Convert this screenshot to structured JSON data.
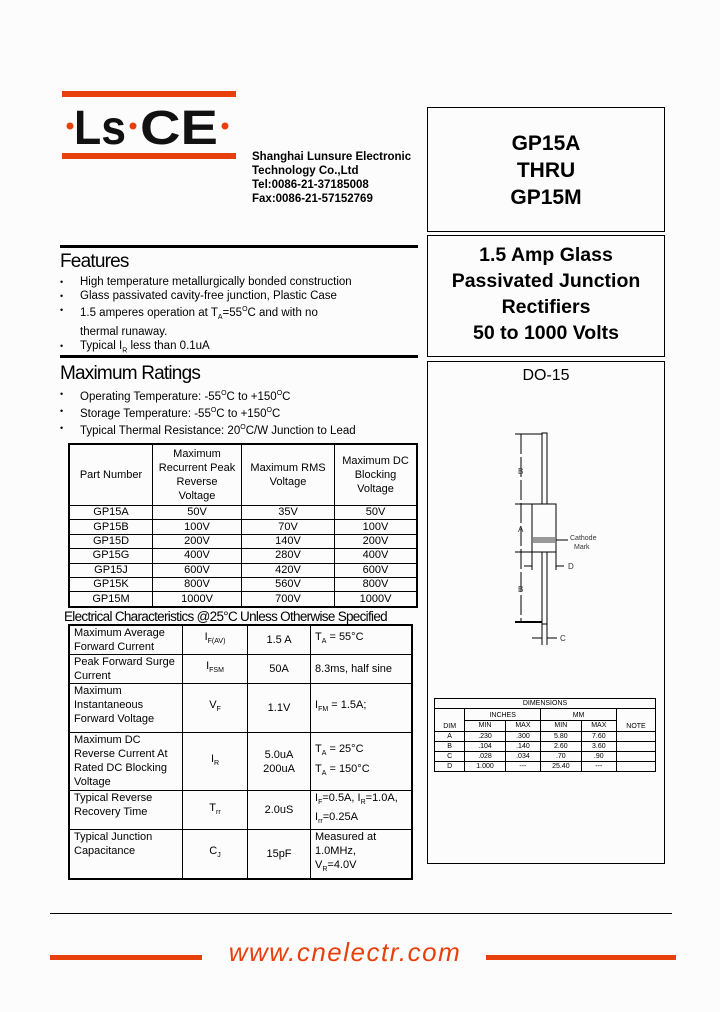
{
  "logo": {
    "text": "LsCE",
    "accent": "#e8400c"
  },
  "company": {
    "name": "Shanghai Lunsure Electronic",
    "name2": "Technology Co.,Ltd",
    "tel": "Tel:0086-21-37185008",
    "fax": "Fax:0086-21-57152769"
  },
  "title": {
    "line1": "GP15A",
    "line2": "THRU",
    "line3": "GP15M"
  },
  "description": {
    "line1": "1.5 Amp Glass",
    "line2": "Passivated Junction",
    "line3": "Rectifiers",
    "line4": "50 to 1000 Volts"
  },
  "features": {
    "heading": "Features",
    "items": [
      "High temperature metallurgically bonded construction",
      "Glass passivated cavity-free junction, Plastic Case",
      {
        "a": "1.5 amperes operation at T",
        "sub": "A",
        "b": "=55",
        "sup": "O",
        "c": "C and  with no",
        "d": "thermal runaway."
      },
      {
        "a": "Typical I",
        "sub": "R",
        "b": " less than 0.1uA"
      }
    ]
  },
  "ratings": {
    "heading": "Maximum Ratings",
    "items": [
      {
        "a": "Operating Temperature: -55",
        "sup1": "O",
        "b": "C to +150",
        "sup2": "O",
        "c": "C"
      },
      {
        "a": "Storage Temperature: -55",
        "sup1": "O",
        "b": "C to +150",
        "sup2": "O",
        "c": "C"
      },
      {
        "a": "Typical Thermal Resistance: 20",
        "sup1": "O",
        "b": "C/W Junction to Lead"
      }
    ]
  },
  "ratings_table": {
    "headers": [
      "Part Number",
      "Maximum Recurrent Peak Reverse Voltage",
      "Maximum RMS Voltage",
      "Maximum DC Blocking Voltage"
    ],
    "rows": [
      [
        "GP15A",
        "50V",
        "35V",
        "50V"
      ],
      [
        "GP15B",
        "100V",
        "70V",
        "100V"
      ],
      [
        "GP15D",
        "200V",
        "140V",
        "200V"
      ],
      [
        "GP15G",
        "400V",
        "280V",
        "400V"
      ],
      [
        "GP15J",
        "600V",
        "420V",
        "600V"
      ],
      [
        "GP15K",
        "800V",
        "560V",
        "800V"
      ],
      [
        "GP15M",
        "1000V",
        "700V",
        "1000V"
      ]
    ]
  },
  "electrical": {
    "heading": "Electrical Characteristics @25°C Unless Otherwise Specified",
    "rows": [
      {
        "param": "Maximum Average Forward Current",
        "sym": "I",
        "symsub": "F(AV)",
        "value": "1.5 A",
        "cond": [
          {
            "a": "T",
            "sub": "A",
            "b": " = 55°C"
          }
        ]
      },
      {
        "param": "Peak Forward Surge Current",
        "sym": "I",
        "symsub": "FSM",
        "value": "50A",
        "cond": [
          {
            "a": "8.3ms, half sine"
          }
        ]
      },
      {
        "param": "Maximum Instantaneous Forward Voltage",
        "sym": "V",
        "symsub": "F",
        "value": "1.1V",
        "cond": [
          {
            "a": "I",
            "sub": "FM",
            "b": " = 1.5A;"
          }
        ]
      },
      {
        "param": "Maximum DC Reverse Current At Rated DC Blocking Voltage",
        "sym": "I",
        "symsub": "R",
        "value": "5.0uA",
        "value2": "200uA",
        "cond": [
          {
            "a": "T",
            "sub": "A",
            "b": " = 25°C"
          },
          {
            "a": "T",
            "sub": "A",
            "b": " = 150°C"
          }
        ]
      },
      {
        "param": "Typical Reverse Recovery Time",
        "sym": "T",
        "symsub": "rr",
        "value": "2.0uS",
        "cond": [
          {
            "a": "I",
            "sub": "F",
            "b": "=0.5A, I",
            "sub2": "R",
            "c": "=1.0A,"
          },
          {
            "a": "I",
            "sub": "rr",
            "b": "=0.25A"
          }
        ]
      },
      {
        "param": "Typical Junction Capacitance",
        "sym": "C",
        "symsub": "J",
        "value": "15pF",
        "cond": [
          {
            "a": "Measured at"
          },
          {
            "a": "1.0MHz,"
          },
          {
            "a": "V",
            "sub": "R",
            "b": "=4.0V"
          }
        ]
      }
    ]
  },
  "package": {
    "name": "DO-15",
    "labels": {
      "a": "A",
      "b": "B",
      "c": "C",
      "d": "D",
      "cathode1": "Cathode",
      "cathode2": "Mark"
    }
  },
  "dimensions": {
    "title": "DIMENSIONS",
    "inches": "INCHES",
    "mm": "MM",
    "dim": "DIM",
    "min": "MIN",
    "max": "MAX",
    "note": "NOTE",
    "rows": [
      [
        "A",
        ".230",
        ".300",
        "5.80",
        "7.60",
        ""
      ],
      [
        "B",
        ".104",
        ".140",
        "2.60",
        "3.60",
        ""
      ],
      [
        "C",
        ".028",
        ".034",
        ".70",
        ".90",
        ""
      ],
      [
        "D",
        "1.000",
        "---",
        "25.40",
        "---",
        ""
      ]
    ]
  },
  "footer": {
    "url": "www.cnelectr.com"
  }
}
